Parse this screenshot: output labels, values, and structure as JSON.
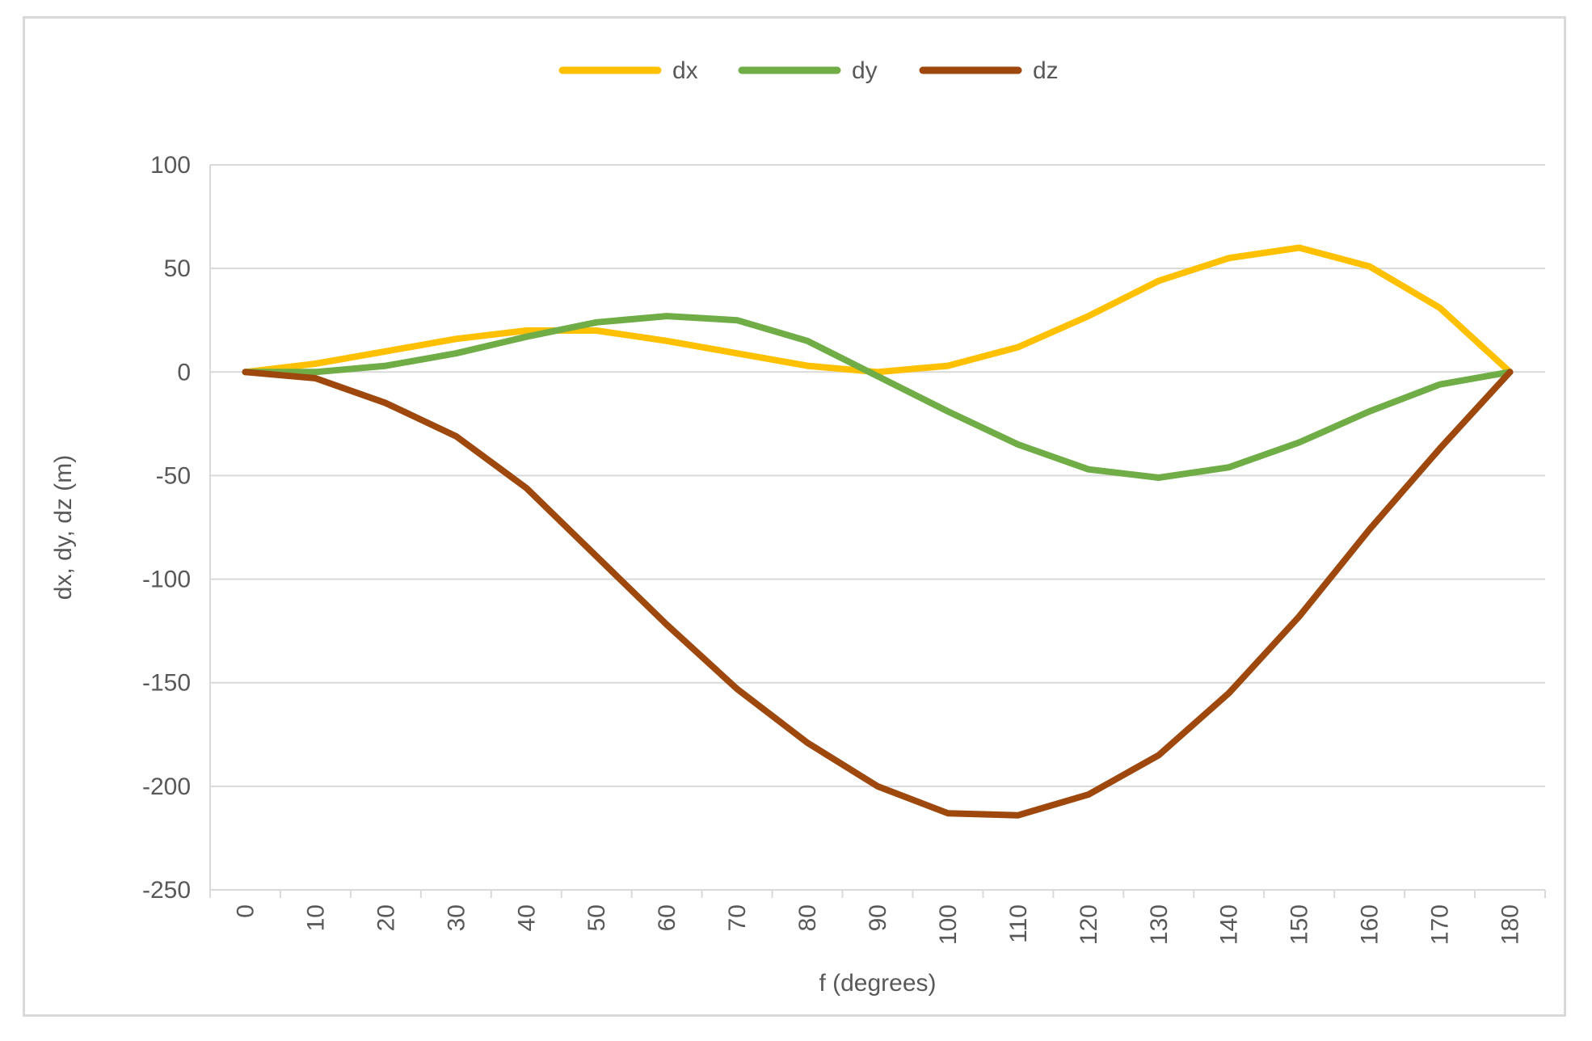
{
  "chart_data": {
    "type": "line",
    "title": "",
    "xlabel": "f (degrees)",
    "ylabel": "dx, dy, dz (m)",
    "categories": [
      "0",
      "10",
      "20",
      "30",
      "40",
      "50",
      "60",
      "70",
      "80",
      "90",
      "100",
      "110",
      "120",
      "130",
      "140",
      "150",
      "160",
      "170",
      "180"
    ],
    "ylim": [
      -250,
      100
    ],
    "yticks": [
      "100",
      "50",
      "0",
      "-50",
      "-100",
      "-150",
      "-200",
      "-250"
    ],
    "ytick_values": [
      100,
      50,
      0,
      -50,
      -100,
      -150,
      -200,
      -250
    ],
    "grid": true,
    "legend": "top",
    "series": [
      {
        "name": "dx",
        "color": "#ffc000",
        "values": [
          0,
          4,
          10,
          16,
          20,
          20,
          15,
          9,
          3,
          0,
          3,
          12,
          27,
          44,
          55,
          60,
          51,
          31,
          0
        ]
      },
      {
        "name": "dy",
        "color": "#70ad47",
        "values": [
          0,
          0,
          3,
          9,
          17,
          24,
          27,
          25,
          15,
          -2,
          -19,
          -35,
          -47,
          -51,
          -46,
          -34,
          -19,
          -6,
          0
        ]
      },
      {
        "name": "dz",
        "color": "#9e480e",
        "values": [
          0,
          -3,
          -15,
          -31,
          -56,
          -89,
          -122,
          -153,
          -179,
          -200,
          -213,
          -214,
          -204,
          -185,
          -155,
          -118,
          -76,
          -37,
          0
        ]
      }
    ]
  }
}
